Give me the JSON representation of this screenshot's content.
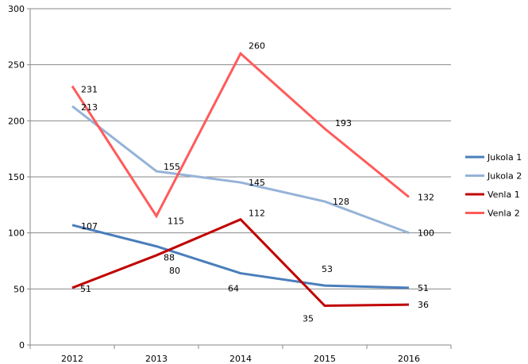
{
  "chart_data": {
    "type": "line",
    "title": "",
    "xlabel": "",
    "ylabel": "",
    "categories": [
      "2012",
      "2013",
      "2014",
      "2015",
      "2016"
    ],
    "ylim": [
      0,
      300
    ],
    "yticks": [
      0,
      50,
      100,
      150,
      200,
      250,
      300
    ],
    "grid": true,
    "legend_position": "right",
    "series": [
      {
        "name": "Jukola 1",
        "color": "#4a7ebb",
        "values": [
          107,
          88,
          64,
          53,
          51
        ]
      },
      {
        "name": "Jukola 2",
        "color": "#95b3d7",
        "values": [
          213,
          155,
          145,
          128,
          100
        ]
      },
      {
        "name": "Venla 1",
        "color": "#c00000",
        "values": [
          51,
          80,
          112,
          35,
          36
        ]
      },
      {
        "name": "Venla 2",
        "color": "#ff5b5b",
        "values": [
          231,
          115,
          260,
          193,
          132
        ]
      }
    ]
  }
}
